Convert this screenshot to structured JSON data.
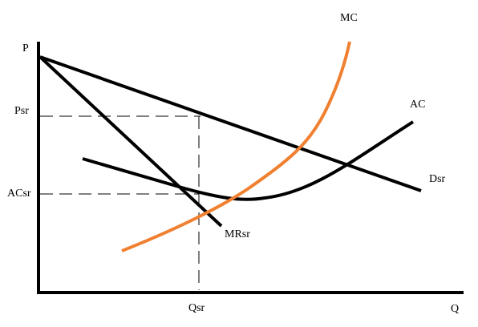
{
  "axes": {
    "y_label": "P",
    "x_label": "Q"
  },
  "levels": {
    "price": "Psr",
    "average_cost": "ACsr",
    "quantity": "Qsr"
  },
  "curves": {
    "mc": "MC",
    "ac": "AC",
    "demand": "Dsr",
    "marginal_revenue": "MRsr"
  }
}
